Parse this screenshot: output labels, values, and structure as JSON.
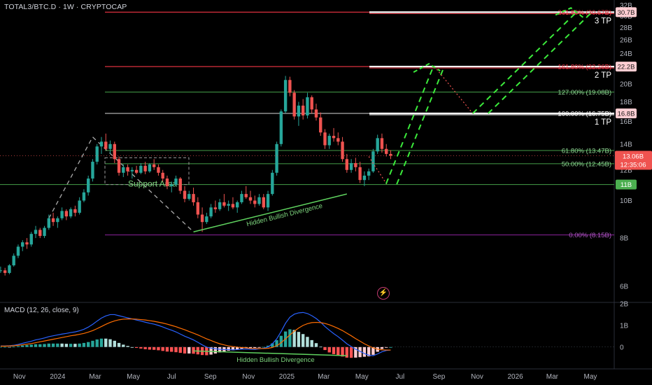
{
  "header": {
    "symbol": "TOTAL3/BTC.D",
    "interval": "1W",
    "source": "CRYPTOCAP",
    "title": "TOTAL3/BTC.D · 1W · CRYPTOCAP"
  },
  "macd_header": "MACD (12, 26, close, 9)",
  "current_price": {
    "value": "13.06B",
    "countdown": "12:35:06"
  },
  "colors": {
    "up": "#26a69a",
    "down": "#ef5350",
    "tp_line": "#f23645",
    "fib_green": "#4caf50",
    "fib_purple": "#9c27b0",
    "projection": "#3bea3b",
    "macd": "#2962ff",
    "signal": "#ff6d00",
    "background": "#000000"
  },
  "annotations": {
    "support_area": "Support Area",
    "hidden_bullish_divergence": "Hidden Bullish Divergence",
    "hidden_bullish_divergence_macd": "Hidden Bullish Divergence",
    "tp3": "3 TP",
    "tp2": "2 TP",
    "tp1": "1 TP"
  },
  "chart_data": [
    {
      "type": "candlestick",
      "title": "TOTAL3/BTC.D · 1W · CRYPTOCAP",
      "y_scale": "log",
      "y_unit": "B",
      "ylim": [
        5.5,
        33
      ],
      "y_tick_labels": [
        "32B",
        "30B",
        "28B",
        "26B",
        "24B",
        "22B",
        "20B",
        "18B",
        "16B",
        "14B",
        "12B",
        "10B",
        "8B",
        "6B"
      ],
      "y_ticks": [
        32,
        30,
        28,
        26,
        24,
        22,
        20,
        18,
        16,
        14,
        12,
        10,
        8,
        6
      ],
      "x_range": [
        "2023-10-01",
        "2026-06-08"
      ],
      "x_tick_labels": [
        "Nov",
        "2024",
        "Mar",
        "May",
        "Jul",
        "Sep",
        "Nov",
        "2025",
        "Mar",
        "May",
        "Jul",
        "Sep",
        "Nov",
        "2026",
        "Mar",
        "May"
      ],
      "x_ticks": [
        "2023-11-01",
        "2024-01-01",
        "2024-03-01",
        "2024-05-01",
        "2024-07-01",
        "2024-09-01",
        "2024-11-01",
        "2025-01-01",
        "2025-03-01",
        "2025-05-01",
        "2025-07-01",
        "2025-09-01",
        "2025-11-01",
        "2026-01-01",
        "2026-03-01",
        "2026-05-01"
      ],
      "first_candle_date": "2023-10-02",
      "candle_interval_days": 7,
      "candles_ohlc": [
        [
          6.6,
          6.75,
          6.5,
          6.6
        ],
        [
          6.6,
          6.7,
          6.4,
          6.5
        ],
        [
          6.5,
          6.85,
          6.45,
          6.8
        ],
        [
          6.8,
          7.3,
          6.75,
          7.2
        ],
        [
          7.2,
          7.7,
          7.1,
          7.6
        ],
        [
          7.6,
          7.9,
          7.4,
          7.8
        ],
        [
          7.8,
          8.0,
          7.5,
          7.7
        ],
        [
          7.7,
          8.3,
          7.6,
          8.2
        ],
        [
          8.2,
          8.6,
          8.0,
          8.4
        ],
        [
          8.4,
          8.5,
          8.0,
          8.1
        ],
        [
          8.1,
          8.6,
          8.0,
          8.5
        ],
        [
          8.5,
          9.2,
          8.4,
          9.0
        ],
        [
          9.0,
          9.3,
          8.6,
          8.8
        ],
        [
          8.8,
          9.1,
          8.5,
          9.0
        ],
        [
          9.0,
          9.6,
          8.9,
          9.4
        ],
        [
          9.4,
          9.5,
          8.9,
          9.1
        ],
        [
          9.1,
          9.6,
          9.0,
          9.5
        ],
        [
          9.5,
          9.7,
          9.1,
          9.3
        ],
        [
          9.3,
          10.2,
          9.2,
          10.0
        ],
        [
          10.0,
          10.7,
          9.9,
          10.5
        ],
        [
          10.5,
          11.6,
          10.3,
          11.4
        ],
        [
          11.4,
          12.8,
          11.2,
          12.6
        ],
        [
          12.6,
          14.0,
          12.4,
          13.8
        ],
        [
          13.8,
          14.6,
          13.2,
          14.2
        ],
        [
          14.2,
          14.9,
          13.5,
          13.6
        ],
        [
          13.6,
          14.3,
          13.2,
          14.0
        ],
        [
          14.0,
          14.2,
          12.5,
          12.8
        ],
        [
          12.8,
          13.0,
          11.6,
          11.8
        ],
        [
          11.8,
          12.4,
          11.5,
          12.2
        ],
        [
          12.2,
          12.4,
          11.6,
          11.9
        ],
        [
          11.9,
          12.2,
          11.4,
          12.0
        ],
        [
          12.0,
          12.3,
          11.7,
          11.8
        ],
        [
          11.8,
          12.5,
          11.7,
          12.3
        ],
        [
          12.3,
          12.6,
          11.7,
          11.9
        ],
        [
          11.9,
          12.5,
          11.8,
          12.4
        ],
        [
          12.4,
          12.8,
          12.0,
          12.2
        ],
        [
          12.2,
          12.4,
          11.6,
          11.8
        ],
        [
          11.8,
          12.0,
          11.2,
          11.4
        ],
        [
          11.4,
          11.6,
          10.7,
          10.9
        ],
        [
          10.9,
          11.2,
          10.5,
          11.0
        ],
        [
          11.0,
          11.6,
          10.9,
          11.4
        ],
        [
          11.4,
          11.5,
          10.4,
          10.6
        ],
        [
          10.6,
          10.9,
          9.9,
          10.1
        ],
        [
          10.1,
          10.6,
          10.0,
          10.4
        ],
        [
          10.4,
          10.8,
          9.7,
          9.9
        ],
        [
          9.9,
          10.2,
          9.0,
          9.2
        ],
        [
          9.2,
          9.6,
          8.3,
          8.8
        ],
        [
          8.8,
          9.3,
          8.7,
          9.1
        ],
        [
          9.1,
          9.8,
          9.0,
          9.6
        ],
        [
          9.6,
          10.0,
          9.3,
          9.5
        ],
        [
          9.5,
          10.1,
          9.4,
          9.9
        ],
        [
          9.9,
          10.4,
          9.6,
          9.7
        ],
        [
          9.7,
          10.0,
          9.4,
          9.8
        ],
        [
          9.8,
          10.2,
          9.5,
          9.6
        ],
        [
          9.6,
          10.0,
          9.3,
          9.9
        ],
        [
          9.9,
          10.6,
          9.8,
          10.4
        ],
        [
          10.4,
          10.9,
          10.1,
          10.2
        ],
        [
          10.2,
          10.6,
          9.8,
          10.0
        ],
        [
          10.0,
          10.3,
          9.6,
          9.8
        ],
        [
          9.8,
          10.4,
          9.7,
          10.2
        ],
        [
          10.2,
          10.4,
          9.5,
          9.6
        ],
        [
          9.6,
          10.6,
          9.4,
          10.4
        ],
        [
          10.4,
          12.0,
          10.3,
          11.8
        ],
        [
          11.8,
          14.2,
          11.6,
          14.0
        ],
        [
          14.0,
          17.2,
          13.8,
          17.0
        ],
        [
          17.0,
          21.0,
          16.8,
          20.5
        ],
        [
          20.5,
          20.9,
          18.6,
          19.0
        ],
        [
          19.0,
          19.3,
          16.2,
          16.5
        ],
        [
          16.5,
          18.0,
          15.6,
          17.6
        ],
        [
          17.6,
          18.3,
          16.2,
          16.6
        ],
        [
          16.6,
          19.0,
          16.3,
          18.5
        ],
        [
          18.5,
          18.7,
          16.8,
          17.2
        ],
        [
          17.2,
          17.8,
          16.1,
          16.4
        ],
        [
          16.4,
          16.9,
          14.7,
          15.0
        ],
        [
          15.0,
          15.3,
          13.6,
          13.9
        ],
        [
          13.9,
          14.9,
          13.6,
          14.7
        ],
        [
          14.7,
          15.4,
          14.2,
          14.5
        ],
        [
          14.5,
          15.0,
          13.9,
          14.2
        ],
        [
          14.2,
          14.6,
          12.6,
          12.8
        ],
        [
          12.8,
          13.2,
          11.8,
          12.0
        ],
        [
          12.0,
          12.8,
          11.8,
          12.5
        ],
        [
          12.5,
          12.9,
          11.9,
          12.2
        ],
        [
          12.2,
          12.6,
          11.1,
          11.3
        ],
        [
          11.3,
          11.9,
          10.9,
          11.6
        ],
        [
          11.6,
          12.1,
          11.3,
          11.9
        ],
        [
          11.9,
          13.6,
          11.8,
          13.4
        ],
        [
          13.4,
          14.8,
          13.2,
          14.5
        ],
        [
          14.5,
          14.9,
          13.3,
          13.6
        ],
        [
          13.6,
          14.0,
          13.0,
          13.2
        ],
        [
          13.2,
          13.5,
          12.8,
          13.06
        ]
      ],
      "horizontal_levels": [
        {
          "name": "3 TP",
          "value": 30.7,
          "label": "30.7B",
          "fib_label": "261.80% (30.67B)",
          "kind": "tp",
          "color": "#f23645"
        },
        {
          "name": "2 TP",
          "value": 22.2,
          "label": "22.2B",
          "fib_label": "161.80% (22.26B)",
          "kind": "tp",
          "color": "#f23645"
        },
        {
          "name": "fib-127",
          "value": 19.08,
          "label": "",
          "fib_label": "127.00% (19.08B)",
          "kind": "fib",
          "color": "#4caf50"
        },
        {
          "name": "1 TP",
          "value": 16.8,
          "label": "16.8B",
          "fib_label": "100.00% (16.75B)",
          "kind": "tp",
          "color": "#ffffff"
        },
        {
          "name": "fib-61.8",
          "value": 13.47,
          "label": "",
          "fib_label": "61.80% (13.47B)",
          "kind": "fib",
          "color": "#4caf50"
        },
        {
          "name": "fib-50",
          "value": 12.45,
          "label": "",
          "fib_label": "50.00% (12.45B)",
          "kind": "fib",
          "color": "#4caf50"
        },
        {
          "name": "support",
          "value": 11.0,
          "label": "11B",
          "fib_label": "",
          "kind": "support",
          "color": "#4caf50"
        },
        {
          "name": "fib-0",
          "value": 8.15,
          "label": "",
          "fib_label": "0.00% (8.15B)",
          "kind": "fib0",
          "color": "#9c27b0"
        }
      ],
      "projection_path": [
        [
          "2025-05-12",
          13.0
        ],
        [
          "2025-06-10",
          11.0
        ],
        [
          "2025-08-25",
          22.2
        ],
        [
          "2025-10-25",
          16.8
        ],
        [
          "2026-04-20",
          30.7
        ]
      ],
      "divergence_line": [
        [
          "2024-08-05",
          8.3
        ],
        [
          "2025-04-07",
          10.4
        ]
      ],
      "support_trendline": [
        [
          "2023-12-18",
          9.0
        ],
        [
          "2024-02-26",
          14.6
        ],
        [
          "2024-08-05",
          8.3
        ]
      ]
    },
    {
      "type": "macd",
      "title": "MACD (12, 26, close, 9)",
      "y_tick_labels": [
        "2B",
        "1B",
        "0"
      ],
      "y_ticks": [
        2,
        1,
        0
      ],
      "ylim": [
        -0.85,
        2.0
      ],
      "macd_line": [
        [
          0.05,
          0.05,
          0.06,
          0.08,
          0.12,
          0.17,
          0.22,
          0.27,
          0.33,
          0.37,
          0.42,
          0.48,
          0.52,
          0.56,
          0.6,
          0.63,
          0.67,
          0.7,
          0.75,
          0.82,
          0.92,
          1.05,
          1.2,
          1.34,
          1.44,
          1.5,
          1.5,
          1.45,
          1.4,
          1.35,
          1.3,
          1.25,
          1.2,
          1.15,
          1.1,
          1.06,
          1.0,
          0.93,
          0.85,
          0.78,
          0.7,
          0.6,
          0.5,
          0.42,
          0.33,
          0.22,
          0.1,
          0.0,
          -0.05,
          -0.08,
          -0.1,
          -0.12,
          -0.12,
          -0.13,
          -0.12,
          -0.1,
          -0.09,
          -0.1,
          -0.11,
          -0.08,
          -0.06,
          0.0,
          0.15,
          0.38,
          0.72,
          1.1,
          1.38,
          1.52,
          1.58,
          1.6,
          1.55,
          1.45,
          1.32,
          1.15,
          0.95,
          0.78,
          0.62,
          0.48,
          0.32,
          0.15,
          0.02,
          -0.1,
          -0.2,
          -0.3,
          -0.38,
          -0.4,
          -0.32,
          -0.22,
          -0.16,
          -0.14
        ]
      ],
      "signal_line": [
        [
          0.04,
          0.04,
          0.05,
          0.06,
          0.08,
          0.1,
          0.13,
          0.16,
          0.2,
          0.24,
          0.28,
          0.32,
          0.36,
          0.4,
          0.44,
          0.48,
          0.52,
          0.55,
          0.59,
          0.63,
          0.69,
          0.76,
          0.85,
          0.95,
          1.05,
          1.14,
          1.21,
          1.26,
          1.29,
          1.3,
          1.3,
          1.29,
          1.27,
          1.25,
          1.22,
          1.19,
          1.15,
          1.11,
          1.06,
          1.0,
          0.94,
          0.87,
          0.8,
          0.72,
          0.64,
          0.56,
          0.47,
          0.38,
          0.3,
          0.22,
          0.15,
          0.1,
          0.05,
          0.02,
          0.0,
          -0.02,
          -0.04,
          -0.06,
          -0.07,
          -0.07,
          -0.07,
          -0.06,
          -0.02,
          0.06,
          0.2,
          0.38,
          0.56,
          0.73,
          0.88,
          1.0,
          1.08,
          1.13,
          1.14,
          1.13,
          1.09,
          1.03,
          0.95,
          0.86,
          0.76,
          0.64,
          0.52,
          0.39,
          0.27,
          0.15,
          0.05,
          -0.04,
          -0.1,
          -0.13,
          -0.14,
          -0.14
        ]
      ],
      "divergence_label": "Hidden Bullish Divergence"
    }
  ]
}
